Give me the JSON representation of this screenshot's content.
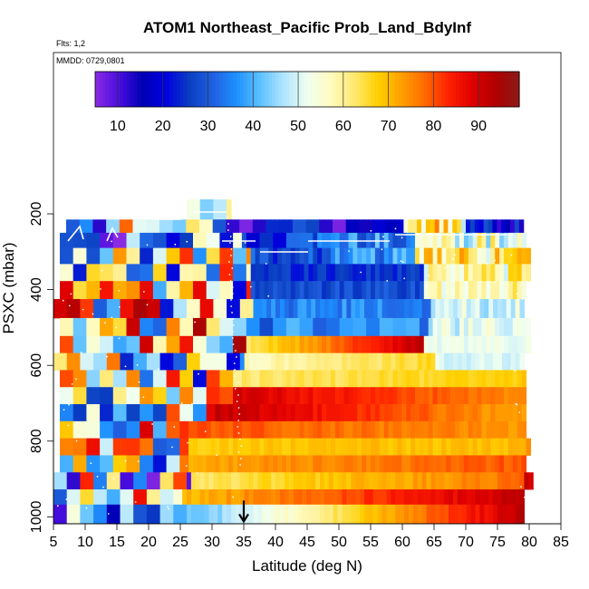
{
  "chart_data": {
    "type": "heatmap",
    "title": "ATOM1 Northeast_Pacific Prob_Land_BdyInf",
    "flights_label": "Flts: 1,2",
    "mmdd_label": "MMDD: 0729,0801",
    "xlabel": "Latitude (deg N)",
    "ylabel": "PSXC (mbar)",
    "xlim": [
      5,
      85
    ],
    "ylim": [
      1000,
      150
    ],
    "x_ticks": [
      5,
      10,
      15,
      20,
      25,
      30,
      35,
      40,
      45,
      50,
      55,
      60,
      65,
      70,
      75,
      80,
      85
    ],
    "y_ticks": [
      200,
      400,
      600,
      800,
      1000
    ],
    "colorbar": {
      "range": [
        5,
        99
      ],
      "ticks": [
        10,
        20,
        30,
        40,
        50,
        60,
        70,
        80,
        90
      ],
      "colors": [
        "#8a2be2",
        "#4b0ee0",
        "#0000b4",
        "#0000e0",
        "#0a3fc0",
        "#2060e0",
        "#1e90ff",
        "#5cc0ff",
        "#b0e4ff",
        "#f0fff0",
        "#fffbc0",
        "#ffe870",
        "#ffd000",
        "#ffa000",
        "#ff6a00",
        "#ff2000",
        "#e00000",
        "#b00000",
        "#8b1a1a"
      ]
    },
    "marker": {
      "x": 35,
      "y": 1000,
      "symbol": "down-arrow"
    },
    "layers": [
      {
        "p": 200,
        "x0": 26,
        "x1": 33,
        "mode": "mixed",
        "base": 40,
        "rough": 30
      },
      {
        "p": 230,
        "x0": 7,
        "x1": 79,
        "mode": "regions",
        "regions": [
          [
            7,
            30,
            45,
            35
          ],
          [
            30,
            60,
            18,
            12
          ],
          [
            60,
            70,
            62,
            25
          ],
          [
            70,
            79,
            20,
            15
          ]
        ]
      },
      {
        "p": 270,
        "x0": 6,
        "x1": 79,
        "mode": "regions",
        "regions": [
          [
            6,
            34,
            35,
            38
          ],
          [
            34,
            46,
            22,
            14
          ],
          [
            46,
            62,
            35,
            14
          ],
          [
            62,
            79,
            55,
            22
          ]
        ]
      },
      {
        "p": 310,
        "x0": 6,
        "x1": 80,
        "mode": "regions",
        "regions": [
          [
            6,
            36,
            50,
            35
          ],
          [
            36,
            48,
            28,
            10
          ],
          [
            48,
            62,
            36,
            12
          ],
          [
            62,
            80,
            62,
            20
          ]
        ]
      },
      {
        "p": 355,
        "x0": 6,
        "x1": 80,
        "mode": "regions",
        "regions": [
          [
            6,
            36,
            50,
            35
          ],
          [
            36,
            63,
            25,
            6
          ],
          [
            63,
            80,
            60,
            18
          ]
        ]
      },
      {
        "p": 400,
        "x0": 6,
        "x1": 79,
        "mode": "regions",
        "regions": [
          [
            6,
            36,
            55,
            35
          ],
          [
            36,
            63,
            28,
            6
          ],
          [
            63,
            79,
            58,
            12
          ]
        ]
      },
      {
        "p": 450,
        "x0": 5,
        "x1": 79,
        "mode": "regions",
        "regions": [
          [
            5,
            36,
            58,
            38
          ],
          [
            36,
            64,
            35,
            8
          ],
          [
            64,
            79,
            50,
            10
          ]
        ]
      },
      {
        "p": 500,
        "x0": 6,
        "x1": 80,
        "mode": "regions",
        "regions": [
          [
            6,
            35,
            60,
            35
          ],
          [
            35,
            64,
            35,
            8
          ],
          [
            64,
            80,
            50,
            10
          ]
        ]
      },
      {
        "p": 545,
        "x0": 6,
        "x1": 80,
        "mode": "ramp",
        "cut": 35,
        "left": 60,
        "lrough": 38,
        "a": 62,
        "b": 93,
        "end": 63,
        "tail": 52
      },
      {
        "p": 590,
        "x0": 5,
        "x1": 79,
        "mode": "ramp",
        "cut": 35,
        "left": 55,
        "lrough": 35,
        "a": 57,
        "b": 66,
        "end": 65,
        "tail": 50
      },
      {
        "p": 635,
        "x0": 6,
        "x1": 79,
        "mode": "ramp",
        "cut": 34,
        "left": 50,
        "lrough": 35,
        "a": 62,
        "b": 68,
        "end": 79,
        "tail": 60
      },
      {
        "p": 680,
        "x0": 6,
        "x1": 79,
        "mode": "ramp",
        "cut": 33,
        "left": 55,
        "lrough": 35,
        "a": 90,
        "b": 74,
        "end": 79,
        "tail": 72
      },
      {
        "p": 725,
        "x0": 6,
        "x1": 79,
        "mode": "ramp",
        "cut": 30,
        "left": 55,
        "lrough": 35,
        "a": 92,
        "b": 72,
        "end": 79,
        "tail": 72
      },
      {
        "p": 770,
        "x0": 6,
        "x1": 79,
        "mode": "ramp",
        "cut": 26,
        "left": 55,
        "lrough": 35,
        "a": 80,
        "b": 74,
        "end": 79,
        "tail": 72
      },
      {
        "p": 815,
        "x0": 6,
        "x1": 80,
        "mode": "ramp",
        "cut": 26,
        "left": 55,
        "lrough": 35,
        "a": 68,
        "b": 70,
        "end": 79,
        "tail": 75
      },
      {
        "p": 860,
        "x0": 6,
        "x1": 79,
        "mode": "ramp",
        "cut": 26,
        "left": 55,
        "lrough": 35,
        "a": 72,
        "b": 80,
        "end": 79,
        "tail": 78
      },
      {
        "p": 905,
        "x0": 5,
        "x1": 80,
        "mode": "ramp",
        "cut": 26,
        "left": 45,
        "lrough": 40,
        "a": 62,
        "b": 78,
        "end": 79,
        "tail": 90
      },
      {
        "p": 950,
        "x0": 5,
        "x1": 79,
        "mode": "ramp",
        "cut": 25,
        "left": 55,
        "lrough": 35,
        "a": 70,
        "b": 92,
        "end": 79,
        "tail": 90
      },
      {
        "p": 985,
        "x0": 5,
        "x1": 79,
        "mode": "ramp",
        "cut": 26,
        "left": 30,
        "lrough": 25,
        "a": 40,
        "b": 93,
        "end": 79,
        "tail": 90
      }
    ]
  }
}
